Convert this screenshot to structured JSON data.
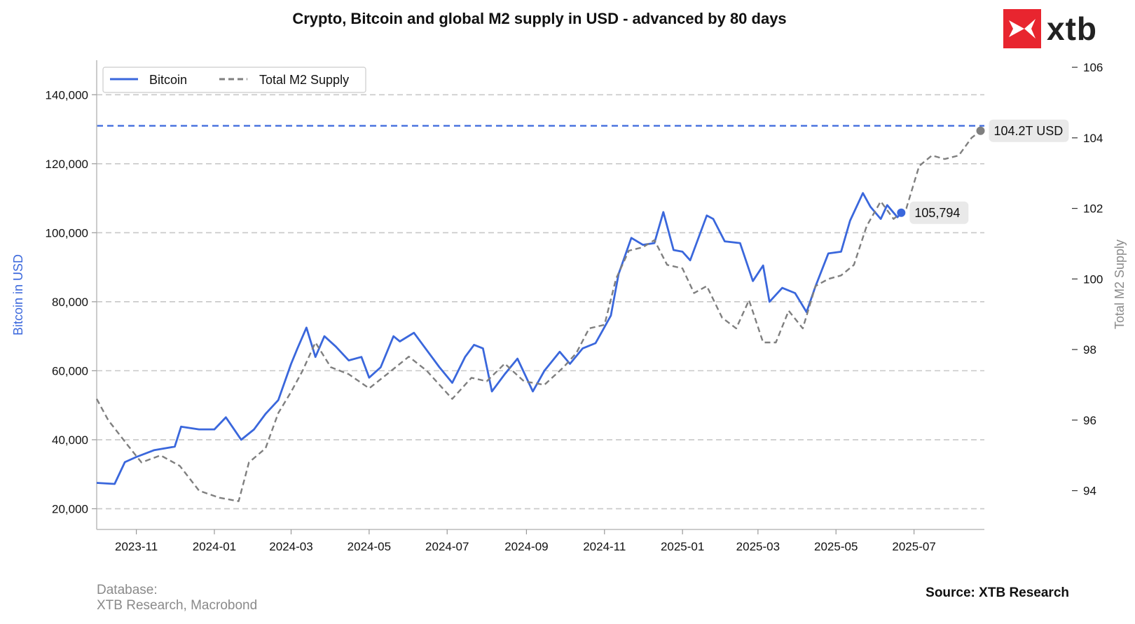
{
  "title": "Crypto, Bitcoin and global M2 supply in USD - advanced by 80 days",
  "logo": {
    "text": "xtb",
    "color": "#e8252f",
    "icon": "xtb-logo-icon"
  },
  "footer": {
    "database_label": "Database:",
    "database_value": "XTB Research, Macrobond",
    "source": "Source: XTB Research"
  },
  "colors": {
    "bitcoin": "#3a67dc",
    "m2": "#7f7f7f",
    "grid": "#c8c8c8"
  },
  "chart_data": {
    "type": "line",
    "title": "Crypto, Bitcoin and global M2 supply in USD - advanced by 80 days",
    "xlabel": "",
    "ylabel": "Bitcoin in USD",
    "y2label": "Total M2 Supply",
    "x_ticks": [
      "2023-11",
      "2024-01",
      "2024-03",
      "2024-05",
      "2024-07",
      "2024-09",
      "2024-11",
      "2025-01",
      "2025-03",
      "2025-05",
      "2025-07"
    ],
    "y_ticks": [
      "20,000",
      "40,000",
      "60,000",
      "80,000",
      "100,000",
      "120,000",
      "140,000"
    ],
    "y_tick_values": [
      20000,
      40000,
      60000,
      80000,
      100000,
      120000,
      140000
    ],
    "y2_ticks": [
      "94",
      "96",
      "98",
      "100",
      "102",
      "104",
      "106"
    ],
    "y2_tick_values": [
      94,
      96,
      98,
      100,
      102,
      104,
      106
    ],
    "ylim": [
      14000,
      150000
    ],
    "y2lim": [
      92.9,
      106.2
    ],
    "xlim": [
      "2023-10-01",
      "2025-08-25"
    ],
    "grid": "horizontal dashed",
    "legend_position": "top-left",
    "reference_line": {
      "series": "Bitcoin",
      "value": 131000,
      "style": "dashed"
    },
    "series": [
      {
        "name": "Bitcoin",
        "axis": "left",
        "style": "solid",
        "end_label": "105,794",
        "points": [
          [
            "2023-10-01",
            27500
          ],
          [
            "2023-10-15",
            27200
          ],
          [
            "2023-10-23",
            33500
          ],
          [
            "2023-11-01",
            35000
          ],
          [
            "2023-11-15",
            37000
          ],
          [
            "2023-12-01",
            38000
          ],
          [
            "2023-12-06",
            43800
          ],
          [
            "2023-12-20",
            43000
          ],
          [
            "2024-01-01",
            43000
          ],
          [
            "2024-01-10",
            46500
          ],
          [
            "2024-01-22",
            40000
          ],
          [
            "2024-02-01",
            43000
          ],
          [
            "2024-02-10",
            47500
          ],
          [
            "2024-02-20",
            51500
          ],
          [
            "2024-03-01",
            62000
          ],
          [
            "2024-03-06",
            66500
          ],
          [
            "2024-03-13",
            72500
          ],
          [
            "2024-03-20",
            64000
          ],
          [
            "2024-03-27",
            70000
          ],
          [
            "2024-04-05",
            67000
          ],
          [
            "2024-04-15",
            63000
          ],
          [
            "2024-04-25",
            64000
          ],
          [
            "2024-05-01",
            58000
          ],
          [
            "2024-05-10",
            61000
          ],
          [
            "2024-05-20",
            70000
          ],
          [
            "2024-05-25",
            68500
          ],
          [
            "2024-06-05",
            71000
          ],
          [
            "2024-06-15",
            66000
          ],
          [
            "2024-06-25",
            61000
          ],
          [
            "2024-07-05",
            56500
          ],
          [
            "2024-07-15",
            64000
          ],
          [
            "2024-07-22",
            67500
          ],
          [
            "2024-07-29",
            66500
          ],
          [
            "2024-08-05",
            54000
          ],
          [
            "2024-08-15",
            59000
          ],
          [
            "2024-08-25",
            63500
          ],
          [
            "2024-09-06",
            54000
          ],
          [
            "2024-09-15",
            60000
          ],
          [
            "2024-09-27",
            65500
          ],
          [
            "2024-10-05",
            62000
          ],
          [
            "2024-10-15",
            66500
          ],
          [
            "2024-10-25",
            68000
          ],
          [
            "2024-10-31",
            72000
          ],
          [
            "2024-11-06",
            76000
          ],
          [
            "2024-11-12",
            88000
          ],
          [
            "2024-11-22",
            98500
          ],
          [
            "2024-12-01",
            96500
          ],
          [
            "2024-12-10",
            97000
          ],
          [
            "2024-12-17",
            106000
          ],
          [
            "2024-12-25",
            95000
          ],
          [
            "2025-01-01",
            94500
          ],
          [
            "2025-01-07",
            92000
          ],
          [
            "2025-01-20",
            105000
          ],
          [
            "2025-01-25",
            104000
          ],
          [
            "2025-02-03",
            97500
          ],
          [
            "2025-02-15",
            97000
          ],
          [
            "2025-02-25",
            86000
          ],
          [
            "2025-03-05",
            90500
          ],
          [
            "2025-03-10",
            80000
          ],
          [
            "2025-03-20",
            84000
          ],
          [
            "2025-03-30",
            82500
          ],
          [
            "2025-04-08",
            77000
          ],
          [
            "2025-04-15",
            84500
          ],
          [
            "2025-04-25",
            94000
          ],
          [
            "2025-05-05",
            94500
          ],
          [
            "2025-05-12",
            103500
          ],
          [
            "2025-05-22",
            111500
          ],
          [
            "2025-05-28",
            107500
          ],
          [
            "2025-06-05",
            104000
          ],
          [
            "2025-06-10",
            108000
          ],
          [
            "2025-06-18",
            104500
          ],
          [
            "2025-06-21",
            105794
          ]
        ]
      },
      {
        "name": "Total M2 Supply",
        "axis": "right",
        "style": "dashed",
        "end_label": "104.2T USD",
        "points": [
          [
            "2023-10-01",
            96.6
          ],
          [
            "2023-10-10",
            96.0
          ],
          [
            "2023-10-25",
            95.3
          ],
          [
            "2023-11-05",
            94.8
          ],
          [
            "2023-11-20",
            95.0
          ],
          [
            "2023-12-05",
            94.7
          ],
          [
            "2023-12-20",
            94.0
          ],
          [
            "2024-01-05",
            93.8
          ],
          [
            "2024-01-20",
            93.7
          ],
          [
            "2024-01-28",
            94.8
          ],
          [
            "2024-02-10",
            95.2
          ],
          [
            "2024-02-20",
            96.2
          ],
          [
            "2024-03-01",
            96.8
          ],
          [
            "2024-03-10",
            97.4
          ],
          [
            "2024-03-20",
            98.2
          ],
          [
            "2024-04-01",
            97.5
          ],
          [
            "2024-04-15",
            97.3
          ],
          [
            "2024-05-01",
            96.9
          ],
          [
            "2024-05-15",
            97.3
          ],
          [
            "2024-06-01",
            97.8
          ],
          [
            "2024-06-15",
            97.4
          ],
          [
            "2024-06-25",
            97.0
          ],
          [
            "2024-07-05",
            96.6
          ],
          [
            "2024-07-20",
            97.2
          ],
          [
            "2024-08-01",
            97.1
          ],
          [
            "2024-08-15",
            97.6
          ],
          [
            "2024-08-30",
            97.1
          ],
          [
            "2024-09-15",
            97.0
          ],
          [
            "2024-09-30",
            97.5
          ],
          [
            "2024-10-10",
            97.9
          ],
          [
            "2024-10-20",
            98.6
          ],
          [
            "2024-11-01",
            98.7
          ],
          [
            "2024-11-10",
            100.0
          ],
          [
            "2024-11-20",
            100.8
          ],
          [
            "2024-12-01",
            100.9
          ],
          [
            "2024-12-10",
            101.1
          ],
          [
            "2024-12-20",
            100.4
          ],
          [
            "2025-01-01",
            100.3
          ],
          [
            "2025-01-10",
            99.6
          ],
          [
            "2025-01-20",
            99.8
          ],
          [
            "2025-02-01",
            98.9
          ],
          [
            "2025-02-12",
            98.6
          ],
          [
            "2025-02-22",
            99.4
          ],
          [
            "2025-03-05",
            98.2
          ],
          [
            "2025-03-15",
            98.2
          ],
          [
            "2025-03-25",
            99.1
          ],
          [
            "2025-04-05",
            98.6
          ],
          [
            "2025-04-15",
            99.8
          ],
          [
            "2025-04-25",
            100.0
          ],
          [
            "2025-05-05",
            100.1
          ],
          [
            "2025-05-15",
            100.4
          ],
          [
            "2025-05-25",
            101.5
          ],
          [
            "2025-06-05",
            102.2
          ],
          [
            "2025-06-15",
            101.7
          ],
          [
            "2025-06-25",
            102.0
          ],
          [
            "2025-07-05",
            103.2
          ],
          [
            "2025-07-15",
            103.5
          ],
          [
            "2025-07-25",
            103.4
          ],
          [
            "2025-08-05",
            103.5
          ],
          [
            "2025-08-15",
            104.0
          ],
          [
            "2025-08-22",
            104.2
          ]
        ]
      }
    ]
  }
}
